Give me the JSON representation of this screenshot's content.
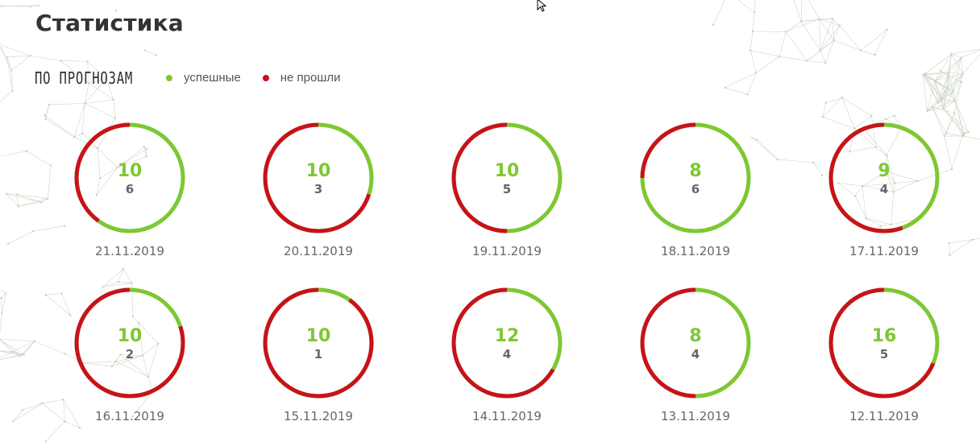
{
  "page": {
    "title": "Статистика"
  },
  "section": {
    "label": "ПО ПРОГНОЗАМ",
    "legend": [
      {
        "label": "успешные",
        "color": "#7dc832"
      },
      {
        "label": "не прошли",
        "color": "#c8121a"
      }
    ]
  },
  "chart_data": {
    "type": "donut",
    "colors": {
      "success": "#7dc832",
      "failed": "#c8121a"
    },
    "items": [
      {
        "date": "21.11.2019",
        "total": 10,
        "success": 6,
        "failed": 4
      },
      {
        "date": "20.11.2019",
        "total": 10,
        "success": 3,
        "failed": 7
      },
      {
        "date": "19.11.2019",
        "total": 10,
        "success": 5,
        "failed": 5
      },
      {
        "date": "18.11.2019",
        "total": 8,
        "success": 6,
        "failed": 2
      },
      {
        "date": "17.11.2019",
        "total": 9,
        "success": 4,
        "failed": 5
      },
      {
        "date": "16.11.2019",
        "total": 10,
        "success": 2,
        "failed": 8
      },
      {
        "date": "15.11.2019",
        "total": 10,
        "success": 1,
        "failed": 9
      },
      {
        "date": "14.11.2019",
        "total": 12,
        "success": 4,
        "failed": 8
      },
      {
        "date": "13.11.2019",
        "total": 8,
        "success": 4,
        "failed": 4
      },
      {
        "date": "12.11.2019",
        "total": 16,
        "success": 5,
        "failed": 11
      }
    ]
  }
}
